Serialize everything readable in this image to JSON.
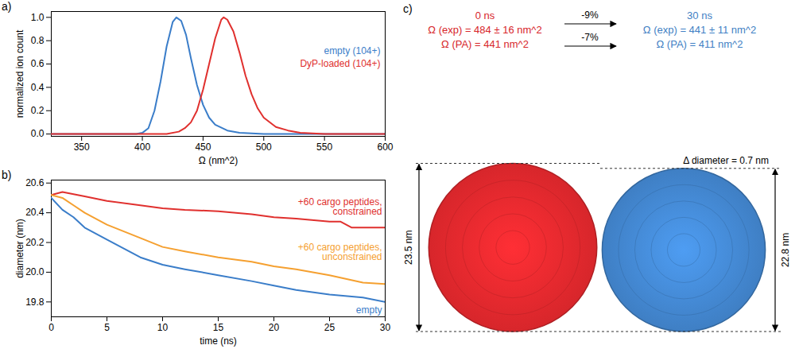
{
  "chart_data": [
    {
      "type": "line",
      "panel_label": "a)",
      "x_label": "Ω (nm^2)",
      "y_label": "normalized ion count",
      "xlim": [
        325,
        600
      ],
      "xticks": [
        350,
        400,
        450,
        500,
        550,
        600
      ],
      "ylim": [
        -0.02,
        1.05
      ],
      "yticks": [
        {
          "value": 0,
          "label": "0.0"
        },
        {
          "value": 0.2,
          "label": "0.2"
        },
        {
          "value": 0.4,
          "label": "0.4"
        },
        {
          "value": 0.6,
          "label": "0.6"
        },
        {
          "value": 0.8,
          "label": "0.8"
        },
        {
          "value": 1,
          "label": "1.0"
        }
      ],
      "legend": "right",
      "series": [
        {
          "name": "empty (104+)",
          "color": "#3a7dc9",
          "x": [
            325,
            395,
            400,
            405,
            410,
            415,
            420,
            425,
            428,
            432,
            436,
            440,
            445,
            450,
            455,
            460,
            470,
            480,
            500,
            600
          ],
          "values": [
            0,
            0,
            0.01,
            0.05,
            0.2,
            0.45,
            0.75,
            0.96,
            1.0,
            0.97,
            0.85,
            0.65,
            0.42,
            0.25,
            0.14,
            0.08,
            0.03,
            0.01,
            0,
            0
          ]
        },
        {
          "name": "DyP-loaded (104+)",
          "color": "#e0302e",
          "x": [
            325,
            420,
            430,
            435,
            440,
            445,
            450,
            455,
            460,
            465,
            467,
            470,
            475,
            480,
            485,
            490,
            495,
            500,
            510,
            520,
            530,
            550,
            600
          ],
          "values": [
            0,
            0,
            0.02,
            0.05,
            0.1,
            0.2,
            0.38,
            0.6,
            0.82,
            0.98,
            1.0,
            0.98,
            0.88,
            0.7,
            0.5,
            0.34,
            0.22,
            0.14,
            0.06,
            0.03,
            0.01,
            0,
            0
          ]
        }
      ]
    },
    {
      "type": "line",
      "panel_label": "b)",
      "x_label": "time (ns)",
      "y_label": "diameter (nm)",
      "xlim": [
        0,
        30
      ],
      "xticks": [
        0,
        5,
        10,
        15,
        20,
        25,
        30
      ],
      "ylim": [
        19.7,
        20.62
      ],
      "yticks": [
        19.8,
        {
          "value": 20,
          "label": "20.0"
        },
        20.2,
        20.4,
        20.6
      ],
      "series": [
        {
          "name": "+60 cargo peptides, constrained",
          "color": "#e0302e",
          "x": [
            0,
            1,
            3,
            5,
            8,
            10,
            12,
            15,
            18,
            20,
            22,
            25,
            26,
            27,
            30
          ],
          "values": [
            20.52,
            20.54,
            20.51,
            20.48,
            20.45,
            20.43,
            20.42,
            20.41,
            20.39,
            20.37,
            20.36,
            20.34,
            20.34,
            20.3,
            20.3
          ]
        },
        {
          "name": "+60 cargo peptides, unconstrained",
          "color": "#f5a030",
          "x": [
            0,
            1,
            2,
            3,
            5,
            8,
            10,
            12,
            15,
            18,
            20,
            22,
            25,
            28,
            30
          ],
          "values": [
            20.52,
            20.5,
            20.45,
            20.4,
            20.32,
            20.23,
            20.17,
            20.14,
            20.1,
            20.07,
            20.04,
            20.02,
            19.98,
            19.93,
            19.92
          ]
        },
        {
          "name": "empty",
          "color": "#3a7dc9",
          "x": [
            0,
            1,
            2,
            3,
            5,
            8,
            10,
            12,
            15,
            18,
            20,
            22,
            25,
            28,
            30
          ],
          "values": [
            20.5,
            20.42,
            20.37,
            20.3,
            20.22,
            20.1,
            20.05,
            20.02,
            19.98,
            19.94,
            19.91,
            19.88,
            19.85,
            19.83,
            19.8
          ]
        }
      ]
    }
  ],
  "diagram": {
    "panel_label": "c)",
    "before": {
      "time": "0 ns",
      "omega_exp": "Ω (exp) = 484 ± 16 nm^2",
      "omega_pa": "Ω (PA) = 441 nm^2",
      "color": "#d7262b",
      "diameter": 23.5,
      "diameter_label": "23.5 nm"
    },
    "after": {
      "time": "30 ns",
      "omega_exp": "Ω (exp) = 441 ± 11 nm^2",
      "omega_pa": "Ω (PA) = 411 nm^2",
      "color": "#3f7fc4",
      "diameter": 22.8,
      "diameter_label": "22.8 nm"
    },
    "changes": [
      "-9%",
      "-7%"
    ],
    "delta_label": "Δ diameter = 0.7 nm"
  }
}
